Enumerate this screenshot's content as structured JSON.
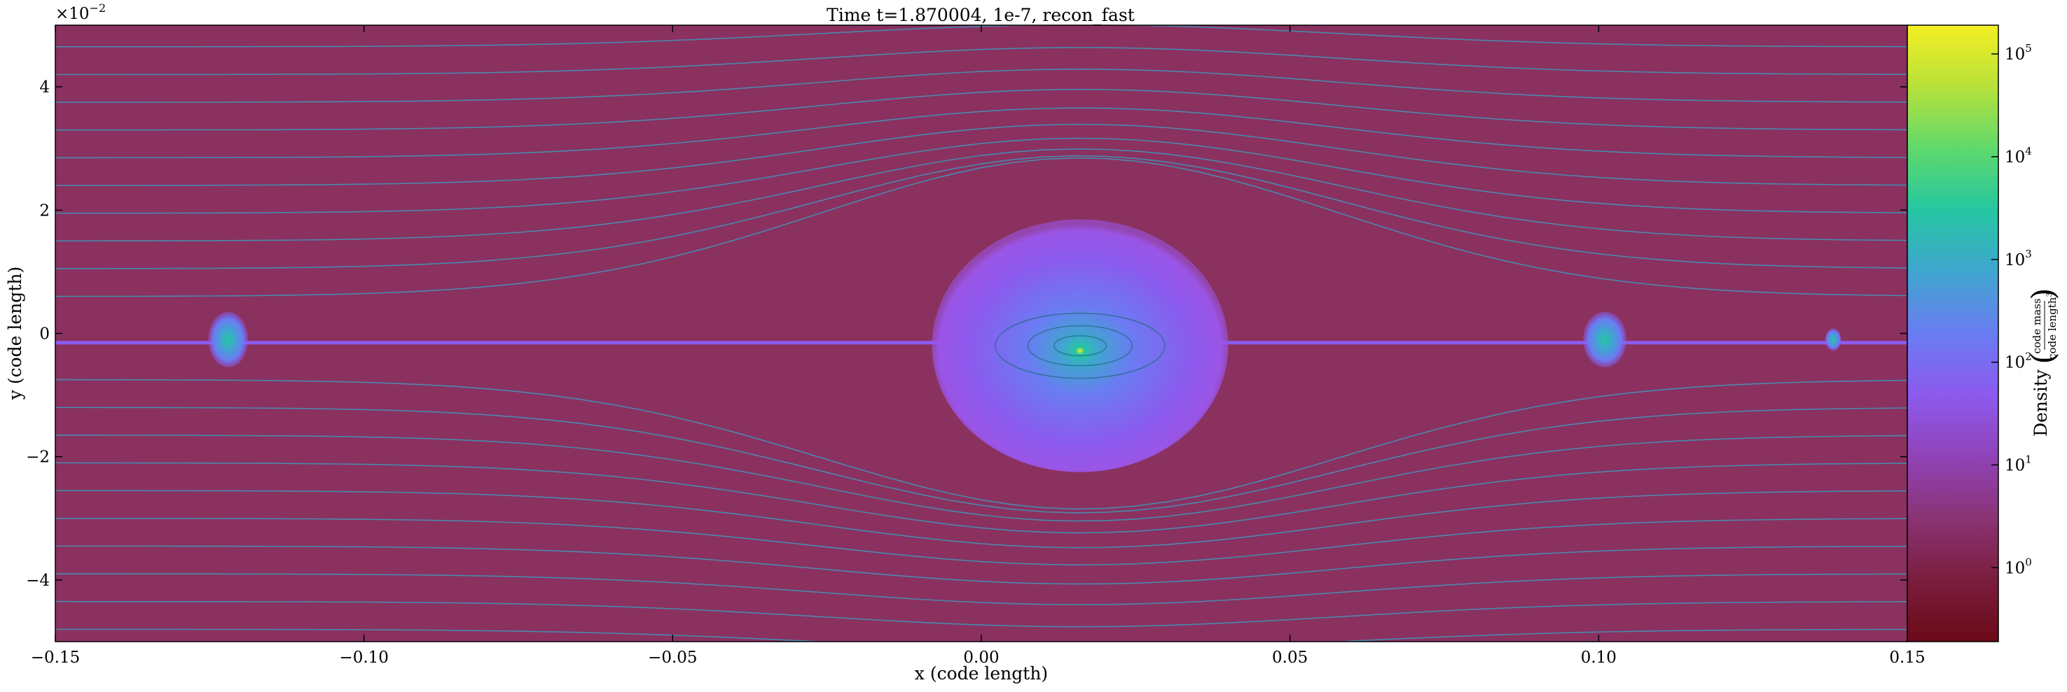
{
  "chart_data": {
    "type": "heatmap",
    "title": "Time t=1.870004, 1e-7, recon_fast",
    "xlabel": "x  (code length)",
    "ylabel": "y  (code length)",
    "xlim": [
      -0.15,
      0.15
    ],
    "ylim": [
      -5,
      5
    ],
    "y_scale_note": "×10",
    "y_scale_exponent": "−2",
    "x_ticks": [
      -0.15,
      -0.1,
      -0.05,
      0.0,
      0.05,
      0.1,
      0.15
    ],
    "x_tick_labels": [
      "−0.15",
      "−0.10",
      "−0.05",
      "0.00",
      "0.05",
      "0.10",
      "0.15"
    ],
    "y_ticks": [
      -4,
      -2,
      0,
      2,
      4
    ],
    "y_tick_labels": [
      "−4",
      "−2",
      "0",
      "2",
      "4"
    ],
    "colorbar": {
      "label": "Density",
      "unit_numerator": "code mass",
      "unit_denominator": "code length",
      "unit_power": "3",
      "scale": "log",
      "range_exp": [
        -0.72,
        5.28
      ],
      "tick_exps": [
        0,
        1,
        2,
        3,
        4,
        5
      ],
      "tick_labels": [
        "10",
        "10",
        "10",
        "10",
        "10",
        "10"
      ],
      "tick_sup": [
        "0",
        "1",
        "2",
        "3",
        "4",
        "5"
      ],
      "colormap": [
        "#6b0a17",
        "#7b1d3e",
        "#8a3374",
        "#9043b8",
        "#8c5aee",
        "#6a7cf2",
        "#3fa6cf",
        "#25c6a1",
        "#5fd96c",
        "#b7e13a",
        "#f4ef22"
      ]
    },
    "features": [
      {
        "name": "central-disk",
        "x": 0.016,
        "y": -0.2,
        "rx": 0.024,
        "ry": 2.05
      },
      {
        "name": "left-clump",
        "x": -0.122,
        "y": -0.1,
        "rx": 0.0032,
        "ry": 0.45
      },
      {
        "name": "right-clump",
        "x": 0.101,
        "y": -0.1,
        "rx": 0.0035,
        "ry": 0.45
      },
      {
        "name": "small-clump",
        "x": 0.138,
        "y": -0.1,
        "rx": 0.0013,
        "ry": 0.18
      }
    ],
    "midplane_y": -0.15,
    "background_color": "#8a3160",
    "streamline_color": "#3f98b8",
    "grid": false,
    "legend": "none"
  }
}
